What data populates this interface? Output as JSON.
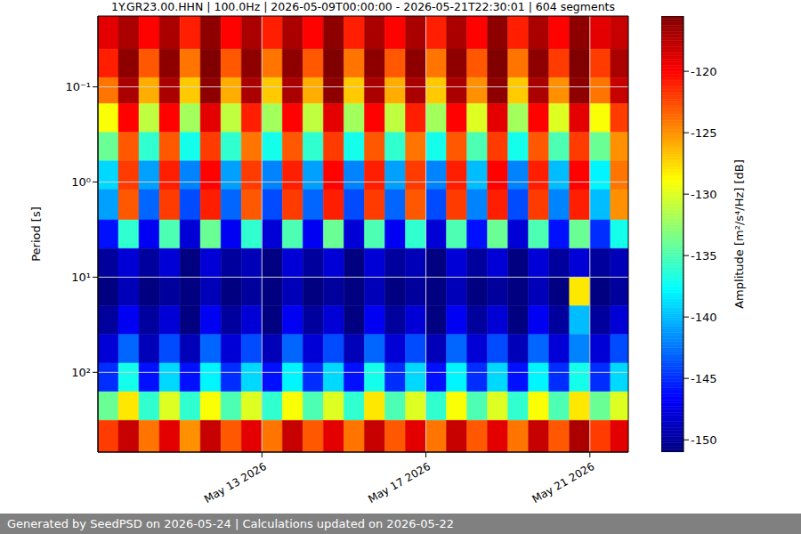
{
  "chart_data": {
    "type": "heatmap",
    "title": "1Y.GR23.00.HHN | 100.0Hz | 2026-05-09T00:00:00 - 2026-05-21T22:30:01 | 604 segments",
    "y_label": "Period [s]",
    "footer": "Generated by SeedPSD on 2026-05-24 | Calculations updated on 2026-05-22",
    "log": "y",
    "grid": true,
    "xlim": [
      "2026-05-09T00:00:00",
      "2026-05-21T22:30:01"
    ],
    "xticks": [
      {
        "value": "2026-05-13T00:00:00",
        "label": "May 13 2026"
      },
      {
        "value": "2026-05-17T00:00:00",
        "label": "May 17 2026"
      },
      {
        "value": "2026-05-21T00:00:00",
        "label": "May 21 2026"
      }
    ],
    "ylim": [
      0.018,
      690
    ],
    "yticks": [
      {
        "value": 0.1,
        "label": "10⁻¹"
      },
      {
        "value": 1,
        "label": "10⁰"
      },
      {
        "value": 10,
        "label": "10¹"
      },
      {
        "value": 100,
        "label": "10²"
      }
    ],
    "x_edges": [
      "2026-05-09T00:00:00",
      "2026-05-09T12:00:00",
      "2026-05-10T00:00:00",
      "2026-05-10T12:00:00",
      "2026-05-11T00:00:00",
      "2026-05-11T12:00:00",
      "2026-05-12T00:00:00",
      "2026-05-12T12:00:00",
      "2026-05-13T00:00:00",
      "2026-05-13T12:00:00",
      "2026-05-14T00:00:00",
      "2026-05-14T12:00:00",
      "2026-05-15T00:00:00",
      "2026-05-15T12:00:00",
      "2026-05-16T00:00:00",
      "2026-05-16T12:00:00",
      "2026-05-17T00:00:00",
      "2026-05-17T12:00:00",
      "2026-05-18T00:00:00",
      "2026-05-18T12:00:00",
      "2026-05-19T00:00:00",
      "2026-05-19T12:00:00",
      "2026-05-20T00:00:00",
      "2026-05-20T12:00:00",
      "2026-05-21T00:00:00",
      "2026-05-21T12:00:00",
      "2026-05-21T22:30:01"
    ],
    "y_edges": [
      0.018,
      0.04,
      0.08,
      0.15,
      0.3,
      0.6,
      1.2,
      2.5,
      5,
      10,
      20,
      40,
      80,
      160,
      320,
      690
    ],
    "cells": [
      [
        -119,
        -117,
        -120,
        -117,
        -121,
        -116,
        -120,
        -117,
        -121,
        -117,
        -120,
        -116,
        -121,
        -117,
        -120,
        -117,
        -121,
        -117,
        -120,
        -116,
        -121,
        -117,
        -120,
        -116,
        -119,
        -118
      ],
      [
        -121,
        -116,
        -123,
        -116,
        -124,
        -115,
        -123,
        -116,
        -124,
        -116,
        -123,
        -115,
        -124,
        -116,
        -123,
        -116,
        -124,
        -116,
        -123,
        -115,
        -124,
        -116,
        -122,
        -115,
        -122,
        -117
      ],
      [
        -124,
        -117,
        -126,
        -117,
        -127,
        -116,
        -126,
        -117,
        -127,
        -117,
        -126,
        -116,
        -127,
        -117,
        -126,
        -117,
        -127,
        -117,
        -125,
        -116,
        -127,
        -117,
        -125,
        -116,
        -124,
        -118
      ],
      [
        -129,
        -120,
        -131,
        -120,
        -132,
        -119,
        -131,
        -121,
        -132,
        -120,
        -131,
        -119,
        -132,
        -120,
        -131,
        -121,
        -132,
        -120,
        -130,
        -119,
        -132,
        -120,
        -130,
        -119,
        -129,
        -122
      ],
      [
        -134,
        -123,
        -136,
        -123,
        -137,
        -122,
        -136,
        -124,
        -137,
        -123,
        -136,
        -122,
        -137,
        -123,
        -136,
        -124,
        -137,
        -123,
        -135,
        -122,
        -137,
        -123,
        -135,
        -122,
        -134,
        -125
      ],
      [
        -139,
        -122,
        -141,
        -121,
        -142,
        -120,
        -141,
        -122,
        -142,
        -121,
        -141,
        -120,
        -142,
        -121,
        -141,
        -122,
        -142,
        -121,
        -140,
        -120,
        -142,
        -121,
        -140,
        -120,
        -138,
        -124
      ],
      [
        -141,
        -123,
        -143,
        -122,
        -144,
        -121,
        -143,
        -123,
        -144,
        -122,
        -143,
        -121,
        -144,
        -122,
        -143,
        -123,
        -144,
        -122,
        -142,
        -121,
        -144,
        -122,
        -142,
        -121,
        -140,
        -125
      ],
      [
        -146,
        -136,
        -147,
        -135,
        -148,
        -134,
        -147,
        -136,
        -148,
        -135,
        -147,
        -134,
        -148,
        -135,
        -147,
        -136,
        -148,
        -135,
        -146,
        -134,
        -148,
        -135,
        -146,
        -134,
        -145,
        -137
      ],
      [
        -150,
        -148,
        -150,
        -148,
        -151,
        -148,
        -150,
        -149,
        -151,
        -148,
        -150,
        -148,
        -151,
        -148,
        -150,
        -149,
        -151,
        -148,
        -150,
        -148,
        -151,
        -148,
        -150,
        -148,
        -150,
        -149
      ],
      [
        -151,
        -149,
        -151,
        -150,
        -151,
        -149,
        -151,
        -150,
        -151,
        -149,
        -151,
        -150,
        -151,
        -149,
        -151,
        -150,
        -151,
        -149,
        -151,
        -150,
        -151,
        -149,
        -151,
        -128,
        -151,
        -150
      ],
      [
        -150,
        -147,
        -150,
        -148,
        -151,
        -147,
        -150,
        -148,
        -151,
        -147,
        -150,
        -148,
        -151,
        -147,
        -150,
        -148,
        -151,
        -147,
        -150,
        -148,
        -151,
        -147,
        -150,
        -140,
        -150,
        -148
      ],
      [
        -148,
        -143,
        -149,
        -144,
        -149,
        -143,
        -148,
        -144,
        -149,
        -143,
        -148,
        -144,
        -149,
        -143,
        -148,
        -144,
        -149,
        -143,
        -148,
        -144,
        -149,
        -143,
        -148,
        -142,
        -148,
        -144
      ],
      [
        -145,
        -137,
        -146,
        -139,
        -146,
        -138,
        -145,
        -139,
        -146,
        -138,
        -145,
        -139,
        -146,
        -137,
        -145,
        -139,
        -146,
        -138,
        -145,
        -139,
        -146,
        -138,
        -145,
        -137,
        -145,
        -139
      ],
      [
        -134,
        -128,
        -136,
        -130,
        -136,
        -129,
        -135,
        -130,
        -136,
        -129,
        -135,
        -130,
        -136,
        -128,
        -135,
        -130,
        -136,
        -129,
        -135,
        -130,
        -136,
        -129,
        -135,
        -128,
        -134,
        -130
      ],
      [
        -122,
        -118,
        -124,
        -119,
        -125,
        -118,
        -123,
        -119,
        -124,
        -118,
        -123,
        -119,
        -124,
        -118,
        -123,
        -119,
        -124,
        -118,
        -123,
        -119,
        -124,
        -118,
        -123,
        -117,
        -122,
        -119
      ]
    ],
    "colorbar": {
      "label": "Amplitude [m²/s⁴/Hz] [dB]",
      "range": [
        -151,
        -115.5
      ],
      "ticks": [
        -150,
        -145,
        -140,
        -135,
        -130,
        -125,
        -120
      ]
    }
  }
}
